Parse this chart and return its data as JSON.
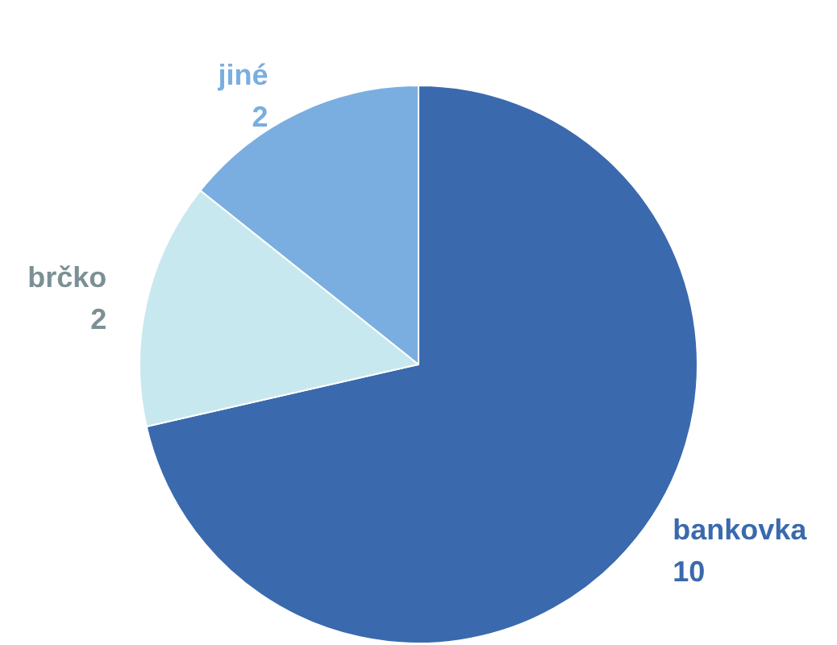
{
  "chart_data": {
    "type": "pie",
    "categories": [
      "bankovka",
      "brčko",
      "jiné"
    ],
    "values": [
      10,
      2,
      2
    ],
    "colors": [
      "#3a6aad",
      "#c8e8ef",
      "#7aaee0"
    ],
    "data_labels": true,
    "legend": false
  }
}
